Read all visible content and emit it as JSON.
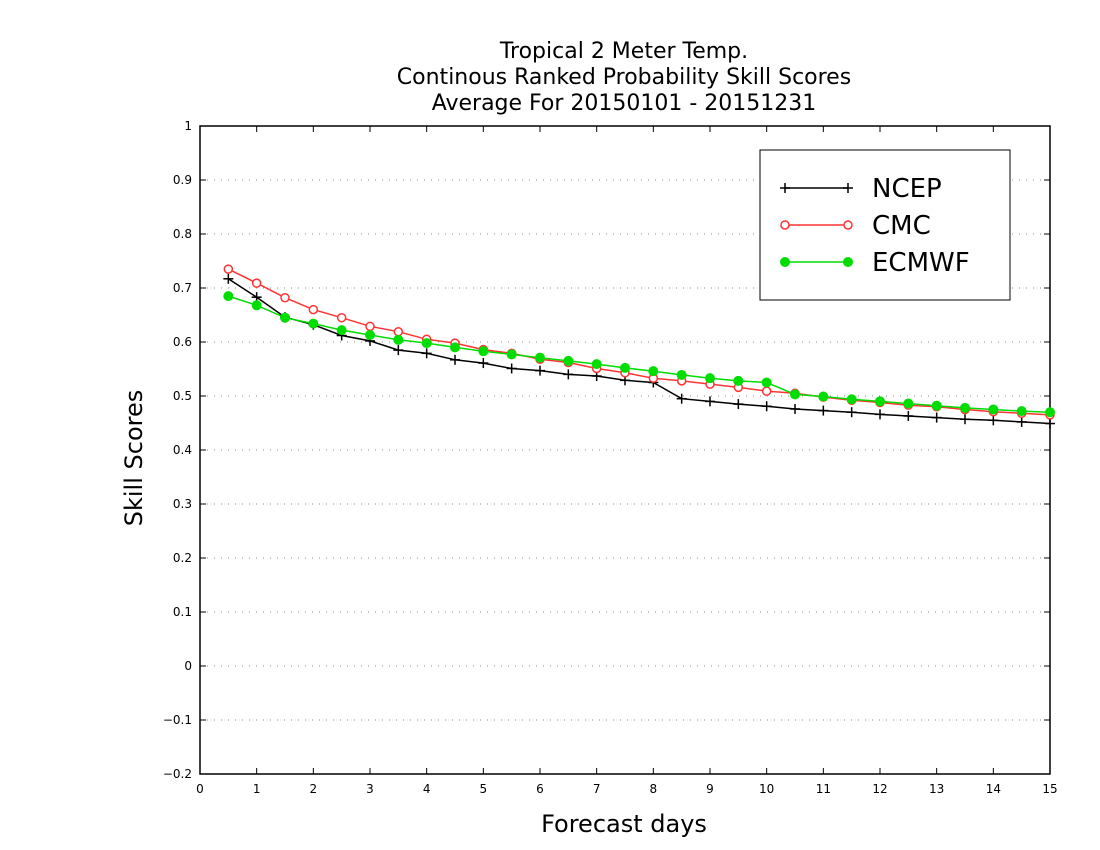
{
  "chart_data": {
    "type": "line",
    "title": [
      "Tropical 2 Meter Temp.",
      "Continous Ranked Probability Skill Scores",
      "Average For 20150101 - 20151231"
    ],
    "xlabel": "Forecast days",
    "ylabel": "Skill Scores",
    "xlim": [
      0,
      15
    ],
    "ylim": [
      -0.2,
      1
    ],
    "xticks": [
      0,
      1,
      2,
      3,
      4,
      5,
      6,
      7,
      8,
      9,
      10,
      11,
      12,
      13,
      14,
      15
    ],
    "yticks": [
      -0.2,
      -0.1,
      0,
      0.1,
      0.2,
      0.3,
      0.4,
      0.5,
      0.6,
      0.7,
      0.8,
      0.9,
      1
    ],
    "ytick_labels": [
      "−0.2",
      "−0.1",
      "0",
      "0.1",
      "0.2",
      "0.3",
      "0.4",
      "0.5",
      "0.6",
      "0.7",
      "0.8",
      "0.9",
      "1"
    ],
    "grid": "horizontal dotted",
    "legend_position": "top-right",
    "x": [
      0.5,
      1,
      1.5,
      2,
      2.5,
      3,
      3.5,
      4,
      4.5,
      5,
      5.5,
      6,
      6.5,
      7,
      7.5,
      8,
      8.5,
      9,
      9.5,
      10,
      10.5,
      11,
      11.5,
      12,
      12.5,
      13,
      13.5,
      14,
      14.5,
      15
    ],
    "series": [
      {
        "name": "NCEP",
        "color": "#000000",
        "marker": "plus",
        "values": [
          0.717,
          0.683,
          0.646,
          0.632,
          0.612,
          0.602,
          0.585,
          0.579,
          0.567,
          0.561,
          0.551,
          0.547,
          0.54,
          0.537,
          0.529,
          0.525,
          0.495,
          0.49,
          0.485,
          0.481,
          0.476,
          0.473,
          0.47,
          0.466,
          0.463,
          0.46,
          0.457,
          0.455,
          0.452,
          0.449
        ]
      },
      {
        "name": "CMC",
        "color": "#ff3333",
        "marker": "open-circle",
        "values": [
          0.735,
          0.709,
          0.682,
          0.66,
          0.645,
          0.629,
          0.619,
          0.605,
          0.598,
          0.586,
          0.579,
          0.568,
          0.562,
          0.551,
          0.543,
          0.533,
          0.528,
          0.522,
          0.516,
          0.509,
          0.505,
          0.498,
          0.492,
          0.488,
          0.483,
          0.48,
          0.475,
          0.471,
          0.468,
          0.465
        ]
      },
      {
        "name": "ECMWF",
        "color": "#00dd00",
        "marker": "filled-circle",
        "values": [
          0.685,
          0.668,
          0.645,
          0.634,
          0.622,
          0.613,
          0.604,
          0.598,
          0.59,
          0.583,
          0.577,
          0.571,
          0.565,
          0.559,
          0.552,
          0.546,
          0.539,
          0.533,
          0.528,
          0.525,
          0.503,
          0.499,
          0.494,
          0.49,
          0.486,
          0.482,
          0.478,
          0.475,
          0.472,
          0.47
        ]
      }
    ]
  }
}
